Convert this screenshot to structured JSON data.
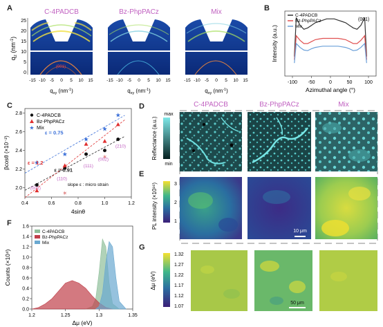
{
  "panels": {
    "a": "A",
    "b": "B",
    "c": "C",
    "d": "D",
    "e": "E",
    "f": "F",
    "g": "G"
  },
  "panel_a": {
    "titles": [
      "C-4PADCB",
      "Bz-PhpPACz",
      "Mix"
    ],
    "title_color": "#c060c0",
    "y_label": "q",
    "y_sub": "z",
    "y_unit": " (nm",
    "x_label": "q",
    "x_sub": "xy",
    "x_unit": " (nm",
    "unit_exp": "-1",
    "y_ticks": [
      "25",
      "20",
      "15",
      "10",
      "5",
      "0"
    ],
    "x_ticks": [
      "-15",
      "-10",
      "-5",
      "0",
      "5",
      "10",
      "15"
    ],
    "annotation": "(001)"
  },
  "chart_data": [
    {
      "id": "B",
      "type": "line",
      "xlabel": "Azimuthal angle (°)",
      "ylabel": "Intensity (a.u.)",
      "xlim": [
        -120,
        120
      ],
      "x_ticks": [
        "-100",
        "-50",
        "0",
        "50",
        "100"
      ],
      "annotation": "(001)",
      "legend": "top-left",
      "series": [
        {
          "name": "C-4PADCB",
          "color": "#333333",
          "x": [
            -95,
            -90,
            -80,
            -70,
            -60,
            -50,
            -40,
            -30,
            -20,
            -10,
            0,
            10,
            20,
            30,
            40,
            50,
            60,
            70,
            80,
            90,
            95
          ],
          "values": [
            0.3,
            0.9,
            0.78,
            0.72,
            0.74,
            0.78,
            0.82,
            0.84,
            0.86,
            0.88,
            0.88,
            0.88,
            0.86,
            0.84,
            0.82,
            0.78,
            0.74,
            0.72,
            0.78,
            0.9,
            0.3
          ]
        },
        {
          "name": "Bz-PhpPACz",
          "color": "#e05050",
          "x": [
            -95,
            -90,
            -80,
            -70,
            -60,
            -50,
            -40,
            -30,
            -20,
            -10,
            0,
            10,
            20,
            30,
            40,
            50,
            60,
            70,
            80,
            90,
            95
          ],
          "values": [
            0.25,
            0.62,
            0.55,
            0.5,
            0.5,
            0.53,
            0.56,
            0.57,
            0.58,
            0.58,
            0.58,
            0.58,
            0.58,
            0.57,
            0.56,
            0.53,
            0.5,
            0.5,
            0.55,
            0.62,
            0.25
          ]
        },
        {
          "name": "Mix",
          "color": "#6a9fd8",
          "x": [
            -95,
            -90,
            -80,
            -70,
            -60,
            -50,
            -40,
            -30,
            -20,
            -10,
            0,
            10,
            20,
            30,
            40,
            50,
            60,
            70,
            80,
            90,
            95
          ],
          "values": [
            0.2,
            0.5,
            0.44,
            0.4,
            0.39,
            0.42,
            0.44,
            0.45,
            0.46,
            0.46,
            0.46,
            0.46,
            0.46,
            0.45,
            0.44,
            0.42,
            0.39,
            0.4,
            0.44,
            0.5,
            0.2
          ]
        }
      ]
    },
    {
      "id": "C",
      "type": "scatter",
      "xlabel": "4sinθ",
      "ylabel": "βcosθ (×10⁻²)",
      "xlim": [
        0.4,
        1.2
      ],
      "ylim": [
        1.9,
        2.85
      ],
      "x_ticks": [
        "0.4",
        "0.6",
        "0.8",
        "1.0",
        "1.2"
      ],
      "y_ticks": [
        "2.0",
        "2.2",
        "2.4",
        "2.6",
        "2.8"
      ],
      "legend": "top-left",
      "series": [
        {
          "name": "C-4PADCB",
          "color": "#111111",
          "marker": "circle",
          "x": [
            0.49,
            0.7,
            0.86,
            1.0,
            1.1
          ],
          "values": [
            2.03,
            2.21,
            2.36,
            2.4,
            2.52
          ],
          "fit_label": "ε = 0.91",
          "fit_color": "#222222"
        },
        {
          "name": "Bz-PhpPACz",
          "color": "#e03030",
          "marker": "triangle",
          "x": [
            0.49,
            0.7,
            0.86,
            1.0,
            1.1
          ],
          "values": [
            1.97,
            2.24,
            2.47,
            2.5,
            2.68
          ],
          "fit_label": "ε = 1.2",
          "fit_color": "#e03030"
        },
        {
          "name": "Mix",
          "color": "#3a6fd8",
          "marker": "star",
          "x": [
            0.49,
            0.7,
            0.86,
            1.0,
            1.1
          ],
          "values": [
            2.27,
            2.36,
            2.52,
            2.63,
            2.78
          ],
          "fit_label": "ε = 0.75",
          "fit_color": "#3a6fd8"
        }
      ],
      "outliers": {
        "color": "#e08080",
        "x": [
          0.7,
          1.0
        ],
        "values": [
          1.94,
          2.33
        ]
      },
      "reflection_labels": [
        "(001)",
        "(110)",
        "(111)",
        "(002)",
        "(210)"
      ],
      "reflection_color": "#c060c0",
      "note": "slope ε : micro strain"
    },
    {
      "id": "F",
      "type": "area",
      "xlabel": "Δμ (eV)",
      "ylabel": "Counts (×10⁴)",
      "xlim": [
        1.2,
        1.35
      ],
      "ylim": [
        0,
        1.6
      ],
      "x_ticks": [
        "1.2",
        "1.25",
        "1.3",
        "1.35"
      ],
      "y_ticks": [
        "0.0",
        "0.2",
        "0.4",
        "0.6",
        "0.8",
        "1.0",
        "1.2",
        "1.4",
        "1.6"
      ],
      "legend": "top-left",
      "series": [
        {
          "name": "C-4PADCB",
          "color": "#8fbf9a",
          "x": [
            1.28,
            1.29,
            1.295,
            1.3,
            1.305,
            1.31,
            1.315,
            1.32,
            1.33
          ],
          "values": [
            0,
            0.05,
            0.2,
            0.7,
            1.35,
            1.2,
            0.5,
            0.1,
            0
          ]
        },
        {
          "name": "Bz-PhpPACz",
          "color": "#c0404a",
          "x": [
            1.2,
            1.21,
            1.22,
            1.23,
            1.24,
            1.25,
            1.26,
            1.27,
            1.28,
            1.29,
            1.3,
            1.31,
            1.32
          ],
          "values": [
            0,
            0.03,
            0.1,
            0.2,
            0.35,
            0.5,
            0.55,
            0.5,
            0.4,
            0.25,
            0.12,
            0.03,
            0
          ]
        },
        {
          "name": "Mix",
          "color": "#6aa8d0",
          "x": [
            1.295,
            1.3,
            1.305,
            1.31,
            1.315,
            1.32,
            1.325,
            1.33,
            1.34
          ],
          "values": [
            0,
            0.05,
            0.3,
            0.9,
            1.3,
            1.2,
            0.6,
            0.15,
            0
          ]
        }
      ]
    }
  ],
  "panel_d": {
    "columns": [
      "C-4PADCB",
      "Bz-PhpPACz",
      "Mix"
    ],
    "column_color": "#c060c0",
    "colorbar_max": "max",
    "colorbar_min": "min",
    "ylabel": "Reflectance (a.u.)"
  },
  "panel_e": {
    "ylabel": "PL intensity (×10¹⁶)",
    "scale_bar": "10 μm",
    "colorbar_ticks": [
      "3",
      "2",
      "1"
    ]
  },
  "panel_g": {
    "ylabel": "Δμ (eV)",
    "scale_bar": "50 μm",
    "colorbar_ticks": [
      "1.32",
      "1.27",
      "1.22",
      "1.17",
      "1.12",
      "1.07"
    ]
  }
}
